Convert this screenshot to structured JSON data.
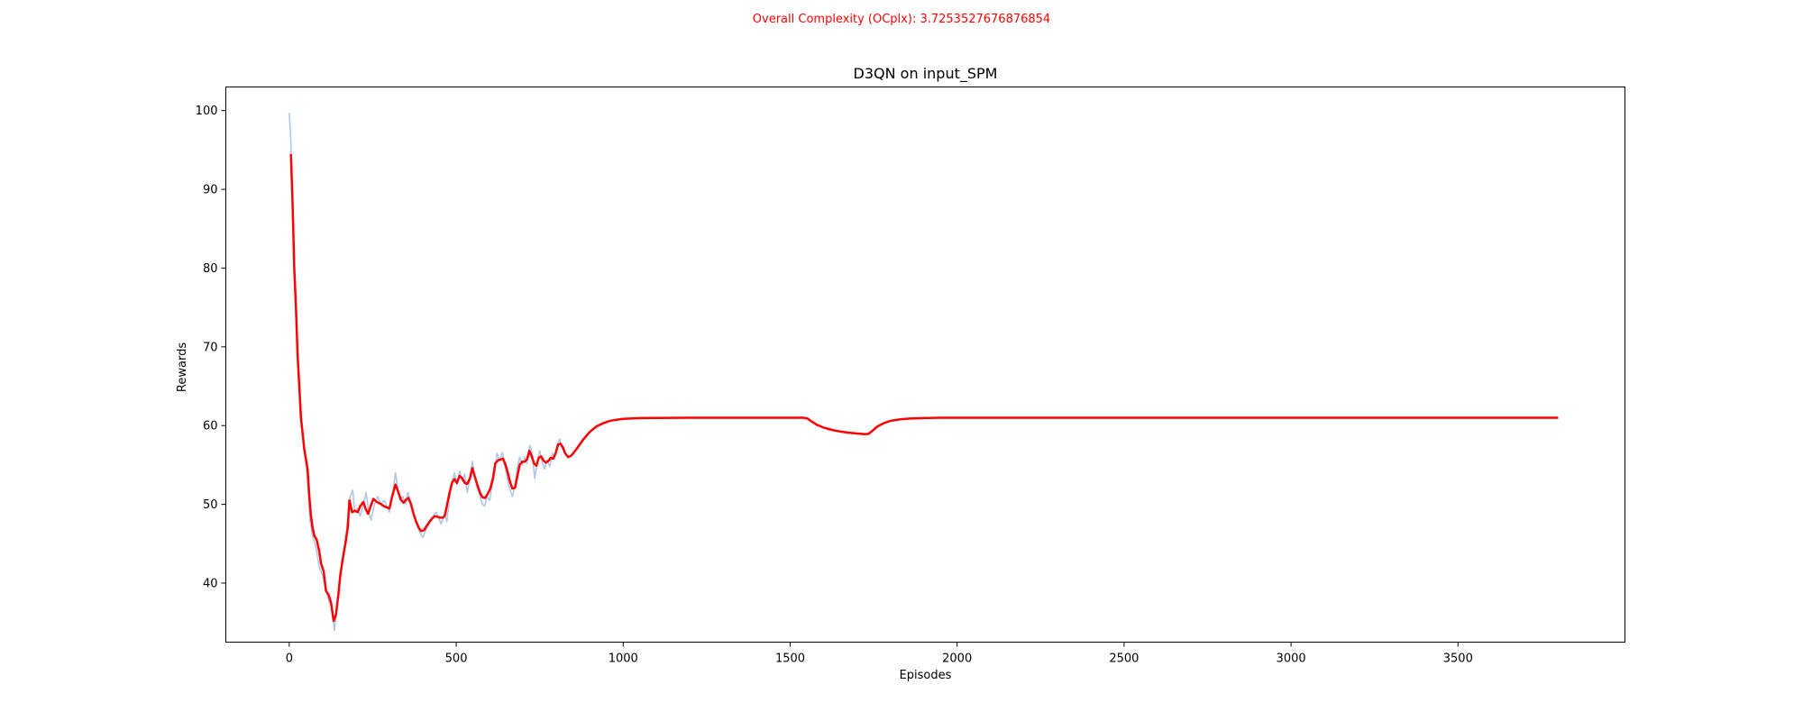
{
  "suptitle": "Overall Complexity (OCplx): 3.7253527676876854",
  "suptitle_color": "#ff0000",
  "chart_data": {
    "type": "line",
    "title": "D3QN on input_SPM",
    "xlabel": "Episodes",
    "ylabel": "Rewards",
    "xlim": [
      -190,
      4000
    ],
    "ylim": [
      32.5,
      103
    ],
    "xticks": [
      0,
      500,
      1000,
      1500,
      2000,
      2500,
      3000,
      3500
    ],
    "yticks": [
      40,
      50,
      60,
      70,
      80,
      90,
      100
    ],
    "grid": false,
    "legend": "none",
    "series": [
      {
        "role": "raw",
        "color": "#aec7e8",
        "points": [
          [
            0,
            99.7
          ],
          [
            5,
            96
          ],
          [
            10,
            88
          ],
          [
            15,
            80
          ],
          [
            22,
            72
          ],
          [
            30,
            65
          ],
          [
            38,
            60
          ],
          [
            45,
            57
          ],
          [
            55,
            53
          ],
          [
            62,
            48
          ],
          [
            70,
            46
          ],
          [
            80,
            44.5
          ],
          [
            90,
            42
          ],
          [
            100,
            41
          ],
          [
            110,
            39
          ],
          [
            120,
            37.5
          ],
          [
            128,
            37
          ],
          [
            135,
            34
          ],
          [
            140,
            35.5
          ],
          [
            145,
            38
          ],
          [
            150,
            40
          ],
          [
            160,
            43
          ],
          [
            170,
            46
          ],
          [
            175,
            48
          ],
          [
            182,
            51
          ],
          [
            190,
            51.8
          ],
          [
            196,
            49
          ],
          [
            205,
            49.5
          ],
          [
            212,
            48.5
          ],
          [
            222,
            50
          ],
          [
            230,
            51.5
          ],
          [
            238,
            49
          ],
          [
            245,
            48
          ],
          [
            255,
            50
          ],
          [
            265,
            51
          ],
          [
            275,
            50
          ],
          [
            285,
            50.5
          ],
          [
            295,
            49.5
          ],
          [
            300,
            49
          ],
          [
            310,
            51.5
          ],
          [
            318,
            54
          ],
          [
            325,
            52
          ],
          [
            332,
            50.5
          ],
          [
            340,
            51
          ],
          [
            348,
            50
          ],
          [
            355,
            51.5
          ],
          [
            362,
            50.5
          ],
          [
            370,
            49
          ],
          [
            378,
            48
          ],
          [
            386,
            47
          ],
          [
            392,
            46.3
          ],
          [
            400,
            45.8
          ],
          [
            410,
            46.8
          ],
          [
            420,
            47.5
          ],
          [
            430,
            48.5
          ],
          [
            440,
            49
          ],
          [
            448,
            48.2
          ],
          [
            455,
            47.5
          ],
          [
            465,
            48.8
          ],
          [
            472,
            47.8
          ],
          [
            480,
            51
          ],
          [
            488,
            53
          ],
          [
            495,
            54
          ],
          [
            502,
            52.5
          ],
          [
            510,
            54.2
          ],
          [
            518,
            53
          ],
          [
            525,
            53.8
          ],
          [
            533,
            51.5
          ],
          [
            540,
            53
          ],
          [
            548,
            55.5
          ],
          [
            555,
            53.5
          ],
          [
            563,
            52
          ],
          [
            570,
            51.2
          ],
          [
            578,
            50
          ],
          [
            585,
            49.8
          ],
          [
            592,
            51
          ],
          [
            600,
            50.5
          ],
          [
            608,
            52.5
          ],
          [
            615,
            54
          ],
          [
            622,
            56.5
          ],
          [
            630,
            55.5
          ],
          [
            638,
            56.6
          ],
          [
            645,
            55
          ],
          [
            652,
            53.5
          ],
          [
            660,
            52
          ],
          [
            668,
            51
          ],
          [
            675,
            52.2
          ],
          [
            682,
            54.5
          ],
          [
            690,
            56
          ],
          [
            698,
            55
          ],
          [
            705,
            56
          ],
          [
            712,
            55.2
          ],
          [
            720,
            57.5
          ],
          [
            728,
            56.5
          ],
          [
            735,
            53.3
          ],
          [
            742,
            55
          ],
          [
            750,
            56.8
          ],
          [
            758,
            55.3
          ],
          [
            765,
            54.5
          ],
          [
            772,
            55.6
          ],
          [
            780,
            54.8
          ],
          [
            788,
            56.5
          ],
          [
            795,
            55.8
          ],
          [
            802,
            57.5
          ],
          [
            810,
            58.3
          ],
          [
            818,
            57
          ],
          [
            825,
            56.5
          ]
        ]
      },
      {
        "role": "smoothed",
        "color": "#ff0000",
        "points": [
          [
            5,
            94.5
          ],
          [
            10,
            88
          ],
          [
            15,
            80
          ],
          [
            20,
            75
          ],
          [
            25,
            69
          ],
          [
            30,
            65
          ],
          [
            35,
            61
          ],
          [
            40,
            59
          ],
          [
            45,
            57
          ],
          [
            55,
            54.5
          ],
          [
            60,
            51
          ],
          [
            65,
            48.5
          ],
          [
            70,
            47
          ],
          [
            75,
            46
          ],
          [
            82,
            45.5
          ],
          [
            90,
            44
          ],
          [
            95,
            42.5
          ],
          [
            103,
            41.5
          ],
          [
            110,
            39
          ],
          [
            118,
            38.5
          ],
          [
            125,
            37.5
          ],
          [
            133,
            35.2
          ],
          [
            140,
            36
          ],
          [
            147,
            38.5
          ],
          [
            153,
            41
          ],
          [
            160,
            43
          ],
          [
            168,
            45
          ],
          [
            175,
            47
          ],
          [
            180,
            50.5
          ],
          [
            188,
            49
          ],
          [
            196,
            49.2
          ],
          [
            205,
            49
          ],
          [
            213,
            49.8
          ],
          [
            222,
            50.3
          ],
          [
            228,
            49.5
          ],
          [
            236,
            48.8
          ],
          [
            244,
            49.8
          ],
          [
            252,
            50.7
          ],
          [
            262,
            50.3
          ],
          [
            272,
            50.1
          ],
          [
            282,
            49.8
          ],
          [
            292,
            49.6
          ],
          [
            300,
            49.5
          ],
          [
            308,
            51
          ],
          [
            318,
            52.5
          ],
          [
            326,
            51.6
          ],
          [
            334,
            50.6
          ],
          [
            342,
            50.2
          ],
          [
            350,
            50.6
          ],
          [
            357,
            50.8
          ],
          [
            364,
            50.1
          ],
          [
            372,
            48.8
          ],
          [
            380,
            47.8
          ],
          [
            388,
            47
          ],
          [
            395,
            46.6
          ],
          [
            403,
            46.7
          ],
          [
            412,
            47.3
          ],
          [
            420,
            47.8
          ],
          [
            428,
            48.2
          ],
          [
            436,
            48.5
          ],
          [
            445,
            48.4
          ],
          [
            452,
            48.3
          ],
          [
            460,
            48.3
          ],
          [
            466,
            48.6
          ],
          [
            472,
            49.8
          ],
          [
            480,
            51.5
          ],
          [
            488,
            52.8
          ],
          [
            495,
            53.2
          ],
          [
            502,
            52.7
          ],
          [
            510,
            53.6
          ],
          [
            518,
            53.3
          ],
          [
            526,
            52.7
          ],
          [
            533,
            52.6
          ],
          [
            541,
            53.3
          ],
          [
            548,
            54.6
          ],
          [
            556,
            53.5
          ],
          [
            563,
            52.5
          ],
          [
            571,
            51.5
          ],
          [
            578,
            50.9
          ],
          [
            586,
            50.8
          ],
          [
            594,
            51.3
          ],
          [
            602,
            52
          ],
          [
            610,
            53.3
          ],
          [
            617,
            55.2
          ],
          [
            625,
            55.6
          ],
          [
            633,
            55.7
          ],
          [
            640,
            55.8
          ],
          [
            647,
            55.1
          ],
          [
            654,
            54.1
          ],
          [
            661,
            52.9
          ],
          [
            668,
            52
          ],
          [
            676,
            52.1
          ],
          [
            683,
            53.6
          ],
          [
            690,
            55
          ],
          [
            697,
            55.4
          ],
          [
            705,
            55.4
          ],
          [
            712,
            55.7
          ],
          [
            719,
            56.8
          ],
          [
            726,
            56.1
          ],
          [
            733,
            55.2
          ],
          [
            740,
            54.9
          ],
          [
            747,
            55.9
          ],
          [
            754,
            56.1
          ],
          [
            761,
            55.6
          ],
          [
            768,
            55.3
          ],
          [
            776,
            55.5
          ],
          [
            783,
            55.9
          ],
          [
            790,
            55.8
          ],
          [
            797,
            56.4
          ],
          [
            805,
            57.6
          ],
          [
            812,
            57.7
          ],
          [
            820,
            57.2
          ],
          [
            826,
            56.5
          ],
          [
            835,
            56
          ],
          [
            845,
            56.2
          ],
          [
            860,
            57
          ],
          [
            880,
            58.2
          ],
          [
            900,
            59.2
          ],
          [
            920,
            59.9
          ],
          [
            940,
            60.3
          ],
          [
            960,
            60.6
          ],
          [
            980,
            60.75
          ],
          [
            1000,
            60.85
          ],
          [
            1050,
            60.95
          ],
          [
            1100,
            60.98
          ],
          [
            1200,
            61
          ],
          [
            1300,
            61
          ],
          [
            1400,
            61
          ],
          [
            1500,
            61
          ],
          [
            1540,
            61
          ],
          [
            1552,
            60.9
          ],
          [
            1565,
            60.5
          ],
          [
            1580,
            60.1
          ],
          [
            1600,
            59.75
          ],
          [
            1625,
            59.45
          ],
          [
            1650,
            59.25
          ],
          [
            1675,
            59.1
          ],
          [
            1700,
            59
          ],
          [
            1725,
            58.9
          ],
          [
            1735,
            58.95
          ],
          [
            1748,
            59.4
          ],
          [
            1762,
            59.9
          ],
          [
            1780,
            60.3
          ],
          [
            1800,
            60.6
          ],
          [
            1830,
            60.8
          ],
          [
            1860,
            60.9
          ],
          [
            1900,
            60.95
          ],
          [
            1950,
            61
          ],
          [
            2000,
            61
          ],
          [
            2500,
            61
          ],
          [
            3000,
            61
          ],
          [
            3500,
            61
          ],
          [
            3800,
            61
          ]
        ]
      }
    ]
  }
}
